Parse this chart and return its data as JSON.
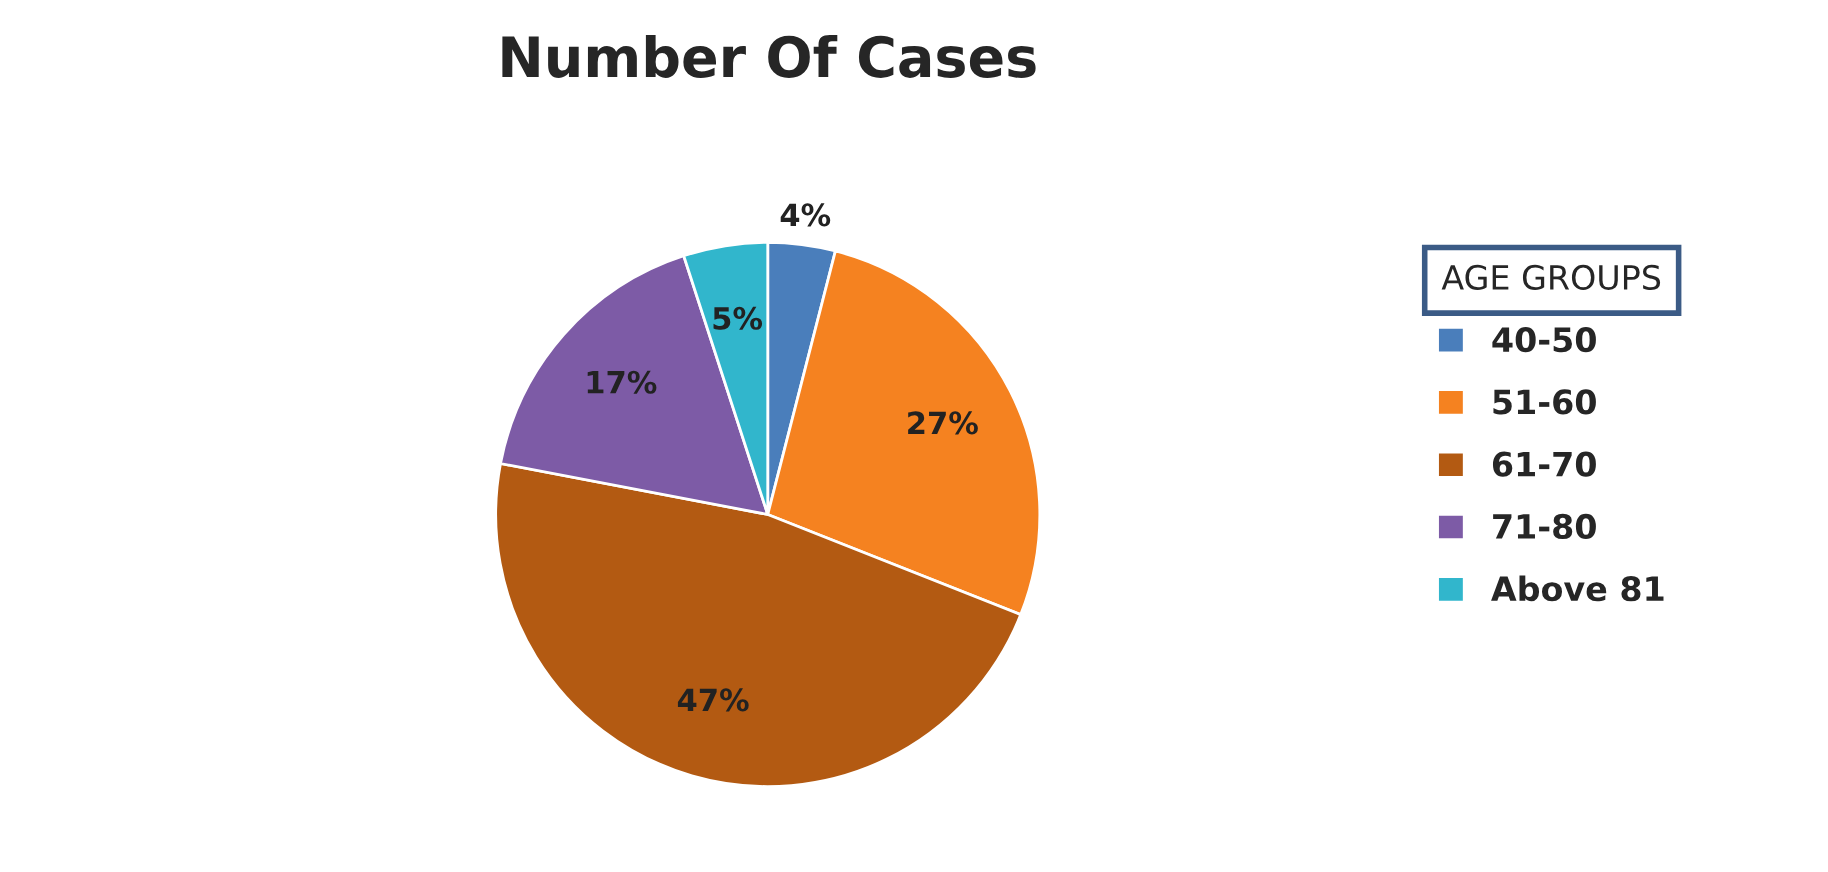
{
  "chart_data": {
    "type": "pie",
    "title": "Number Of Cases",
    "legend_title": "AGE GROUPS",
    "categories": [
      "40-50",
      "51-60",
      "61-70",
      "71-80",
      "Above 81"
    ],
    "values": [
      4,
      27,
      47,
      17,
      5
    ],
    "colors": [
      "#4a7ebb",
      "#f58220",
      "#b35a12",
      "#7d5ba6",
      "#31b6cc"
    ],
    "value_labels": [
      "4%",
      "27%",
      "47%",
      "17%",
      "5%"
    ],
    "legend": "right"
  }
}
